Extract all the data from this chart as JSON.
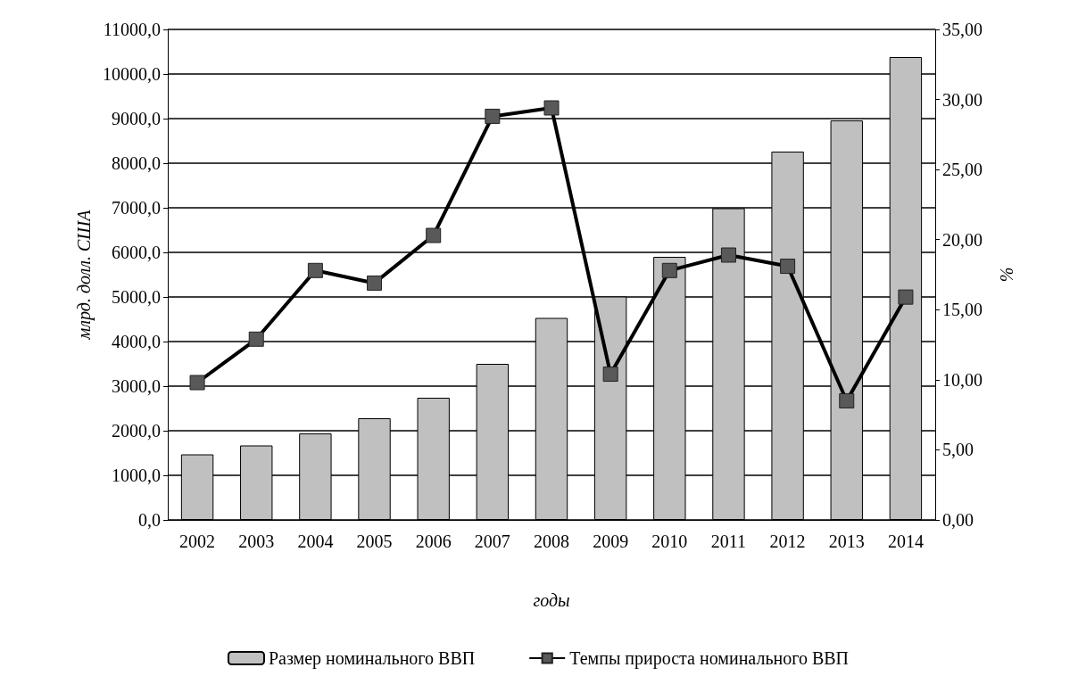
{
  "chart_data": {
    "type": "bar",
    "xlabel": "годы",
    "ylabel": "млрд. долл. США",
    "y2label": "%",
    "categories": [
      "2002",
      "2003",
      "2004",
      "2005",
      "2006",
      "2007",
      "2008",
      "2009",
      "2010",
      "2011",
      "2012",
      "2013",
      "2014"
    ],
    "series": [
      {
        "name": "Размер номинального ВВП",
        "color": "#c0c0c0",
        "values": [
          1470,
          1670,
          1940,
          2280,
          2740,
          3500,
          4530,
          5010,
          5900,
          6990,
          8260,
          8960,
          10380
        ]
      },
      {
        "name": "Темпы прироста номинального ВВП",
        "type": "line",
        "axis": "y2",
        "color": "#000000",
        "marker": "square",
        "values": [
          9.8,
          12.9,
          17.8,
          16.9,
          20.3,
          28.8,
          29.4,
          10.4,
          17.8,
          18.9,
          18.1,
          8.5,
          15.9
        ]
      }
    ],
    "ylim": [
      0,
      11000
    ],
    "yticks": [
      {
        "value": 0,
        "label": "0,0"
      },
      {
        "value": 1000,
        "label": "1000,0"
      },
      {
        "value": 2000,
        "label": "2000,0"
      },
      {
        "value": 3000,
        "label": "3000,0"
      },
      {
        "value": 4000,
        "label": "4000,0"
      },
      {
        "value": 5000,
        "label": "5000,0"
      },
      {
        "value": 6000,
        "label": "6000,0"
      },
      {
        "value": 7000,
        "label": "7000,0"
      },
      {
        "value": 8000,
        "label": "8000,0"
      },
      {
        "value": 9000,
        "label": "9000,0"
      },
      {
        "value": 10000,
        "label": "10000,0"
      },
      {
        "value": 11000,
        "label": "11000,0"
      }
    ],
    "y2lim": [
      0,
      35
    ],
    "y2ticks": [
      {
        "value": 0,
        "label": "0,00"
      },
      {
        "value": 5,
        "label": "5,00"
      },
      {
        "value": 10,
        "label": "10,00"
      },
      {
        "value": 15,
        "label": "15,00"
      },
      {
        "value": 20,
        "label": "20,00"
      },
      {
        "value": 25,
        "label": "25,00"
      },
      {
        "value": 30,
        "label": "30,00"
      },
      {
        "value": 35,
        "label": "35,00"
      }
    ],
    "grid": "y",
    "legend": "bottom"
  }
}
